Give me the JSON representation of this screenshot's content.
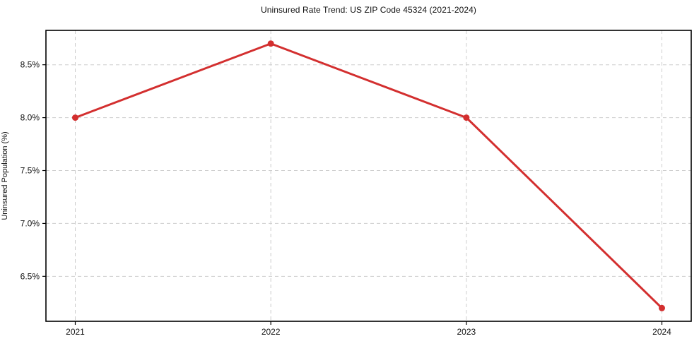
{
  "title": "Uninsured Rate Trend: US ZIP Code 45324 (2021-2024)",
  "chart_data": {
    "type": "line",
    "title": "Uninsured Rate Trend: US ZIP Code 45324 (2021-2024)",
    "xlabel": "",
    "ylabel": "Uninsured Population (%)",
    "x": [
      2021,
      2022,
      2023,
      2024
    ],
    "values": [
      8.0,
      8.7,
      8.0,
      6.2
    ],
    "x_tick_labels": [
      "2021",
      "2022",
      "2023",
      "2024"
    ],
    "y_ticks": [
      6.5,
      7.0,
      7.5,
      8.0,
      8.5
    ],
    "y_tick_labels": [
      "6.5%",
      "7.0%",
      "7.5%",
      "8.0%",
      "8.5%"
    ],
    "xlim": [
      2020.85,
      2024.15
    ],
    "ylim": [
      6.075,
      8.825
    ],
    "grid": true,
    "grid_color": "#cdcdcd",
    "grid_dash": "5 4",
    "line_color": "#d32f2f",
    "line_width": 3,
    "marker": "circle",
    "marker_radius": 4.5,
    "spine_color": "#000000",
    "legend_position": "none"
  }
}
